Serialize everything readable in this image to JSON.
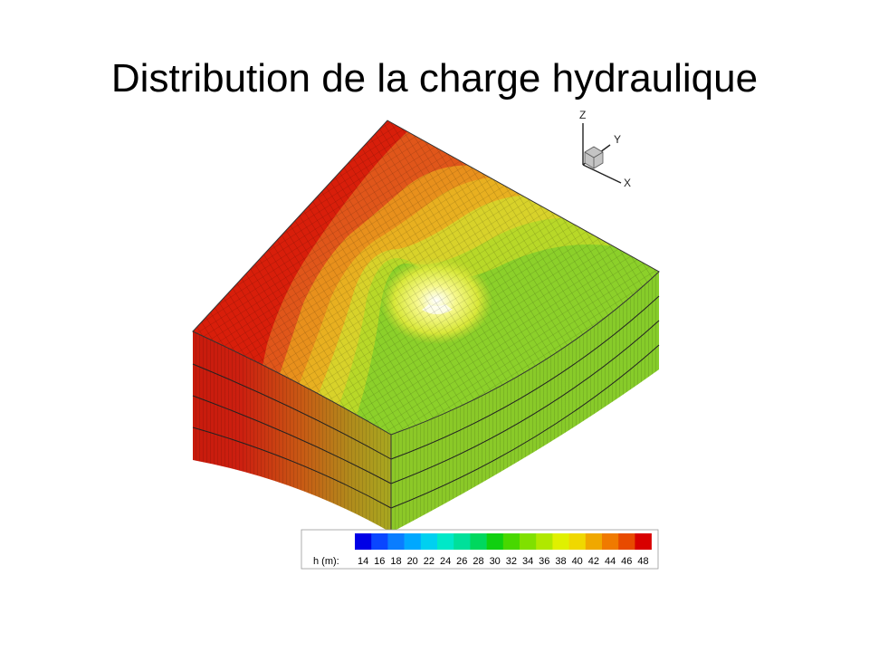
{
  "slide": {
    "title": "Distribution de la charge hydraulique"
  },
  "axes_triad": {
    "z_label": "Z",
    "y_label": "Y",
    "x_label": "X"
  },
  "legend": {
    "label": "h (m):",
    "ticks": [
      "14",
      "16",
      "18",
      "20",
      "22",
      "24",
      "26",
      "28",
      "30",
      "32",
      "34",
      "36",
      "38",
      "40",
      "42",
      "44",
      "46",
      "48"
    ],
    "colors": [
      "#0000e6",
      "#0a46ff",
      "#0a7dff",
      "#00a8ff",
      "#00d0f0",
      "#00e8c8",
      "#00e09a",
      "#00d85e",
      "#10d010",
      "#48d800",
      "#80e000",
      "#b0e800",
      "#e0f000",
      "#f0d800",
      "#f0a800",
      "#f07a00",
      "#e84a00",
      "#d80000"
    ]
  },
  "surface_colors": {
    "red": "#d81e0a",
    "orange_red": "#e0561a",
    "orange": "#e8901c",
    "amber": "#e8b020",
    "yellow": "#d8d22a",
    "yellow_green": "#b8d828",
    "green": "#8cd02a",
    "well_light": "#f4f770"
  }
}
